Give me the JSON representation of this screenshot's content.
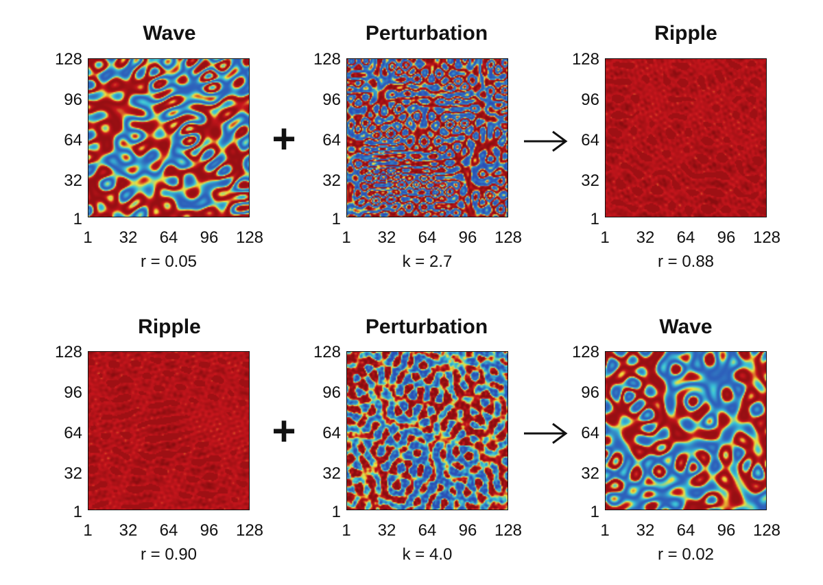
{
  "ticks": {
    "axis": [
      "1",
      "32",
      "64",
      "96",
      "128"
    ]
  },
  "operators": {
    "plus": "+"
  },
  "colors": {
    "red": "#c8161d",
    "dark_red": "#8a0d10",
    "yellow": "#f2e23a",
    "cyan": "#3cc7d8",
    "blue": "#2b4fb6"
  },
  "rows": [
    {
      "panels": [
        {
          "title": "Wave",
          "param": "r = 0.05",
          "pattern": "wave"
        },
        {
          "title": "Perturbation",
          "param": "k = 2.7",
          "pattern": "perturb-fine"
        },
        {
          "title": "Ripple",
          "param": "r = 0.88",
          "pattern": "ripple"
        }
      ]
    },
    {
      "panels": [
        {
          "title": "Ripple",
          "param": "r = 0.90",
          "pattern": "ripple"
        },
        {
          "title": "Perturbation",
          "param": "k = 4.0",
          "pattern": "perturb-cells"
        },
        {
          "title": "Wave",
          "param": "r = 0.02",
          "pattern": "wave"
        }
      ]
    }
  ]
}
